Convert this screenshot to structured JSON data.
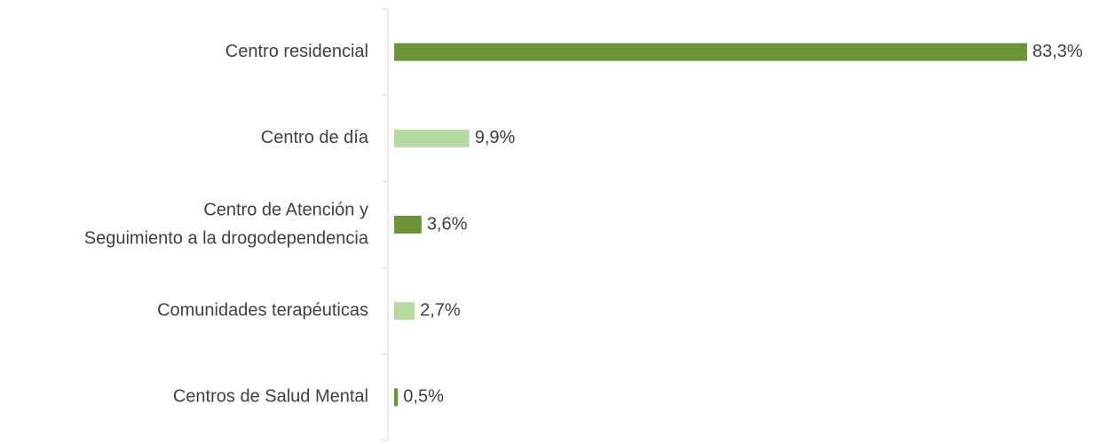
{
  "chart_data": {
    "type": "bar",
    "orientation": "horizontal",
    "categories": [
      "Centro residencial",
      "Centro de día",
      [
        "Centro de Atención y",
        "Seguimiento a la drogodependencia"
      ],
      "Comunidades terapéuticas",
      "Centros de Salud Mental"
    ],
    "values": [
      83.3,
      9.9,
      3.6,
      2.7,
      0.5
    ],
    "value_labels": [
      "83,3%",
      "9,9%",
      "3,6%",
      "2,7%",
      "0,5%"
    ],
    "colors": [
      "#6b9337",
      "#b6d9a1",
      "#6b9337",
      "#b6d9a1",
      "#6b9337"
    ]
  }
}
